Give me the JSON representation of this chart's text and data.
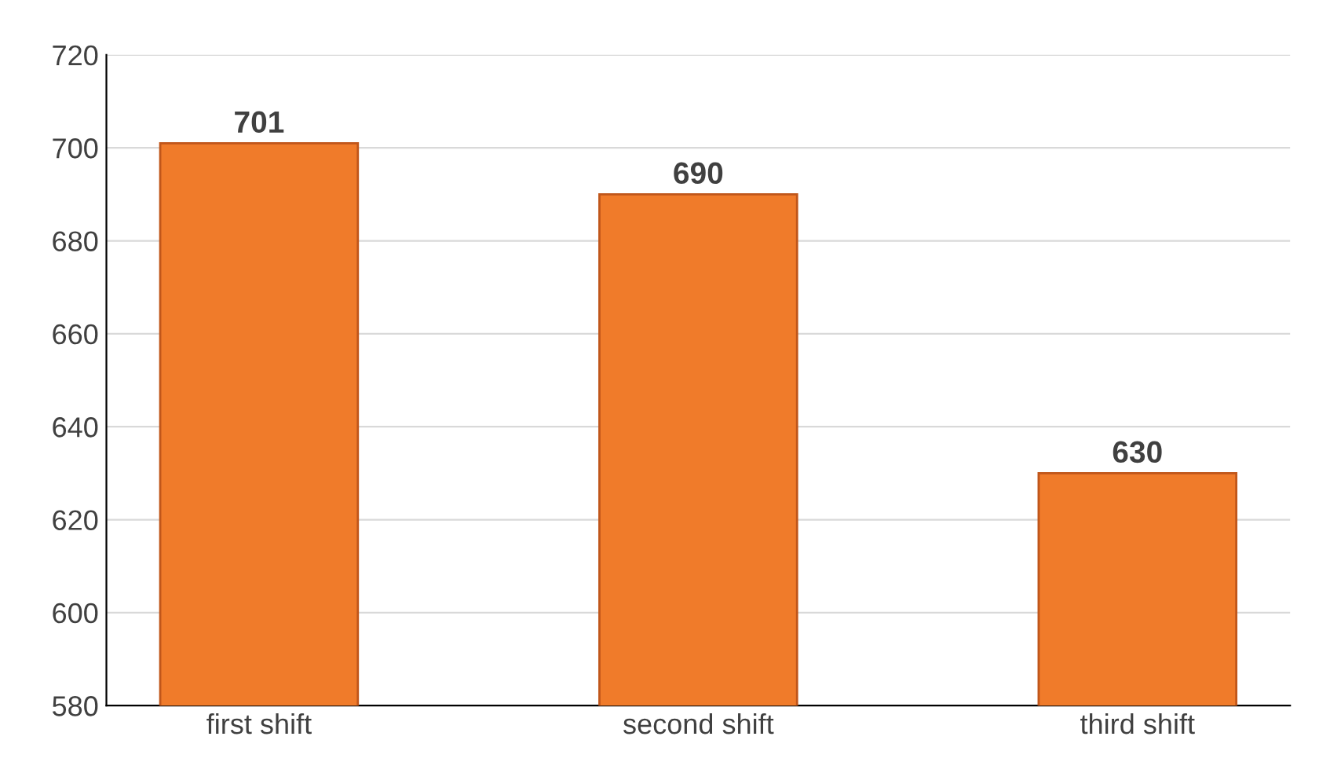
{
  "chart_data": {
    "type": "bar",
    "categories": [
      "first shift",
      "second shift",
      "third shift"
    ],
    "values": [
      701,
      690,
      630
    ],
    "color": "#f07b2a",
    "ylim": [
      580,
      720
    ],
    "yticks": [
      580,
      600,
      620,
      640,
      660,
      680,
      700,
      720
    ],
    "grid": "y",
    "data_labels": true
  }
}
